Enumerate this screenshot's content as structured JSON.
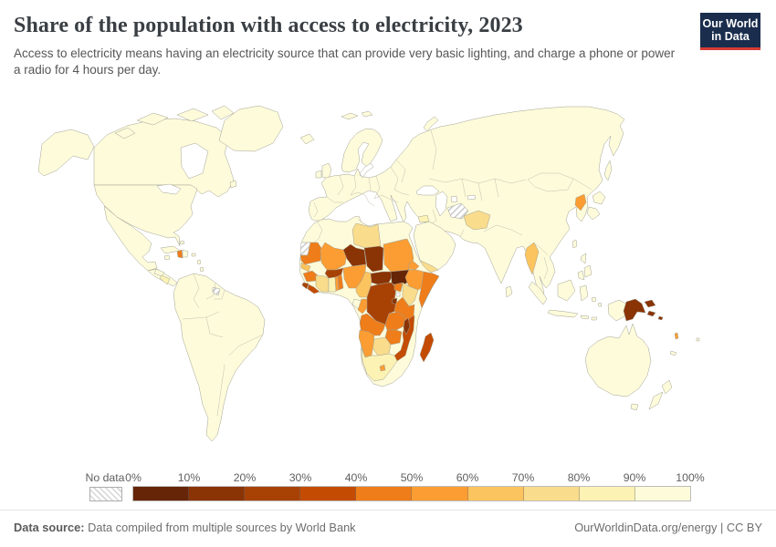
{
  "header": {
    "title": "Share of the population with access to electricity, 2023",
    "subtitle": "Access to electricity means having an electricity source that can provide very basic lighting, and charge a phone or power a radio for 4 hours per day."
  },
  "logo": {
    "line1": "Our World",
    "line2": "in Data",
    "bg_color": "#1a2d4d",
    "accent_color": "#d63c33"
  },
  "legend": {
    "no_data_label": "No data",
    "tick_labels": [
      "0%",
      "10%",
      "20%",
      "30%",
      "40%",
      "50%",
      "60%",
      "70%",
      "80%",
      "90%",
      "100%"
    ]
  },
  "footer": {
    "datasource_label": "Data source:",
    "datasource_text": " Data compiled from multiple sources by World Bank",
    "right_text": "OurWorldinData.org/energy | CC BY"
  },
  "chart_data": {
    "type": "choropleth_map",
    "title": "Share of the population with access to electricity, 2023",
    "unit": "% of population with access to electricity",
    "legend_bins": [
      "0-10%",
      "10-20%",
      "20-30%",
      "30-40%",
      "40-50%",
      "50-60%",
      "60-70%",
      "70-80%",
      "80-90%",
      "90-100%"
    ],
    "bin_colors": [
      "#662506",
      "#8a3305",
      "#a84204",
      "#c44c02",
      "#ee7d1a",
      "#fb9d32",
      "#fcc45e",
      "#f9dc8c",
      "#fbf2b4",
      "#fdfbda"
    ],
    "default_value": 100,
    "entities": {
      "South Sudan": 5,
      "Burundi": 10,
      "Chad": 12,
      "Malawi": 14,
      "Central African Republic": 16,
      "Papua New Guinea": 18,
      "Niger": 19,
      "Democratic Republic of Congo": 21,
      "Burkina Faso": 25,
      "Sierra Leone": 28,
      "Liberia": 32,
      "Mozambique": 33,
      "Madagascar": 36,
      "Benin": 43,
      "Tanzania": 46,
      "Uganda": 47,
      "Guinea": 47,
      "Mauritania": 48,
      "Angola": 48,
      "Zambia": 48,
      "Haiti": 48,
      "Zimbabwe": 49,
      "Somalia": 49,
      "Congo": 52,
      "Mali": 53,
      "Lesotho": 53,
      "North Korea": 54,
      "Eritrea": 55,
      "Ethiopia": 55,
      "Vanuatu": 55,
      "Sudan": 56,
      "Namibia": 56,
      "Togo": 58,
      "Nigeria": 59,
      "Cameroon": 65,
      "Myanmar": 66,
      "Senegal": 68,
      "Libya": 70,
      "Cote d'Ivoire": 72,
      "Kenya": 76,
      "Botswana": 76,
      "Yemen": 76,
      "Afghanistan": 78,
      "Ghana": 85,
      "South Africa": 87,
      "Nicaragua": 87,
      "Syria": 89,
      "Honduras": 94,
      "Gabon": 94
    },
    "no_data_entities": [
      "Western Sahara",
      "French Guiana",
      "Turkmenistan"
    ]
  }
}
